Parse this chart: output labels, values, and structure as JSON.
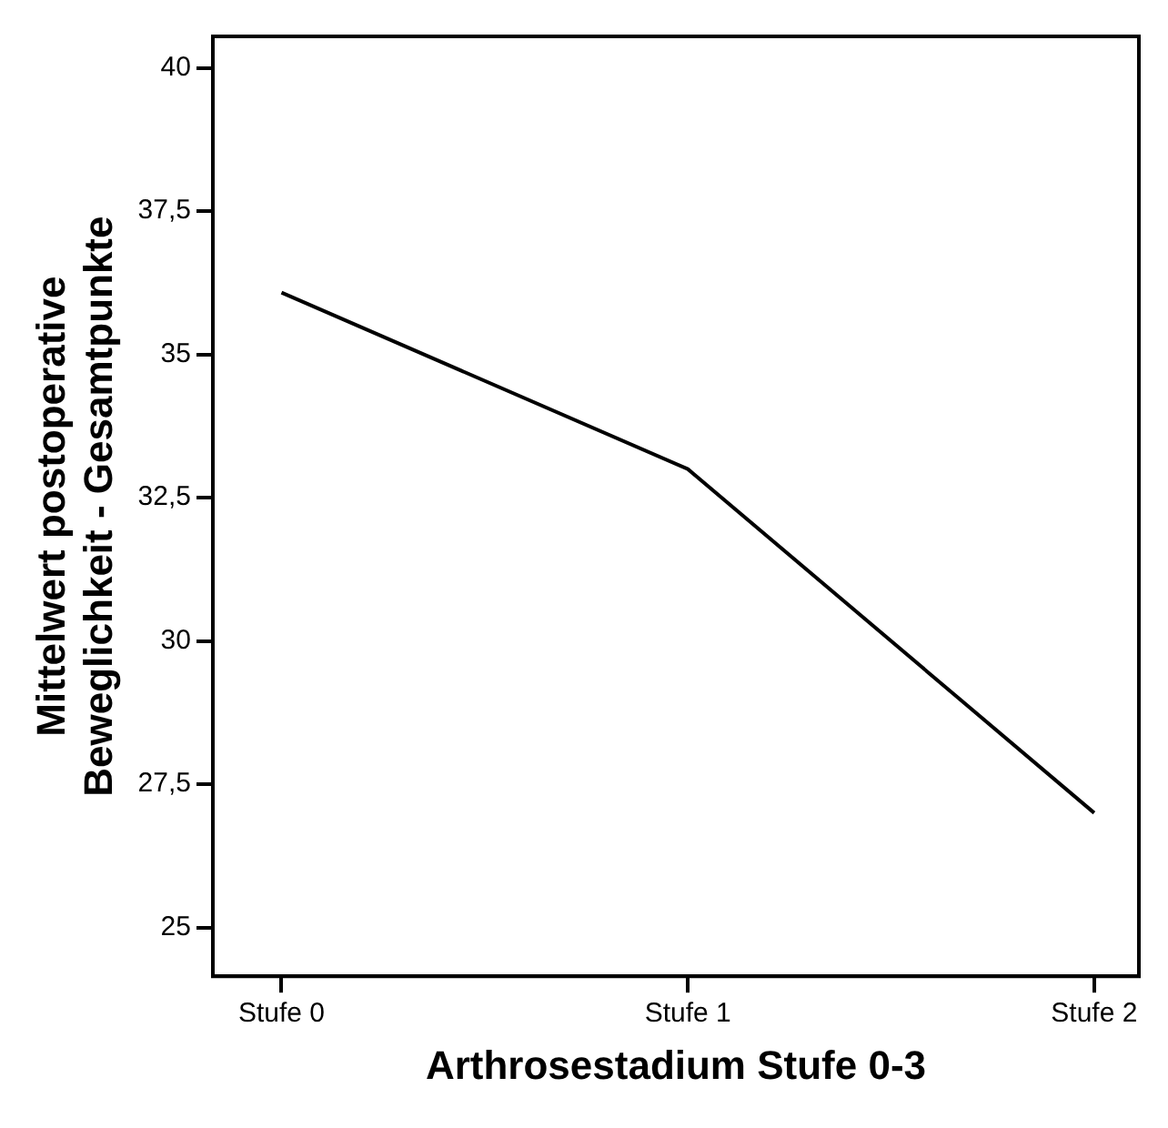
{
  "chart_data": {
    "type": "line",
    "xlabel": "Arthrosestadium Stufe 0-3",
    "ylabel": "Mittelwert postoperative\nBeweglichkeit - Gesamtpunkte",
    "categories": [
      "Stufe 0",
      "Stufe 1",
      "Stufe 2"
    ],
    "series": [
      {
        "color": "#000000",
        "values": [
          36.08,
          33.0,
          27.0
        ]
      }
    ],
    "ylim": [
      24.15,
      40.55
    ],
    "yticks": [
      25,
      {
        "value": 27.5,
        "label": "27,5"
      },
      30,
      {
        "value": 32.5,
        "label": "32,5"
      },
      35,
      {
        "value": 37.5,
        "label": "37,5"
      },
      40
    ],
    "grid": false,
    "legend": false,
    "marker": "none",
    "line_style": "solid"
  }
}
